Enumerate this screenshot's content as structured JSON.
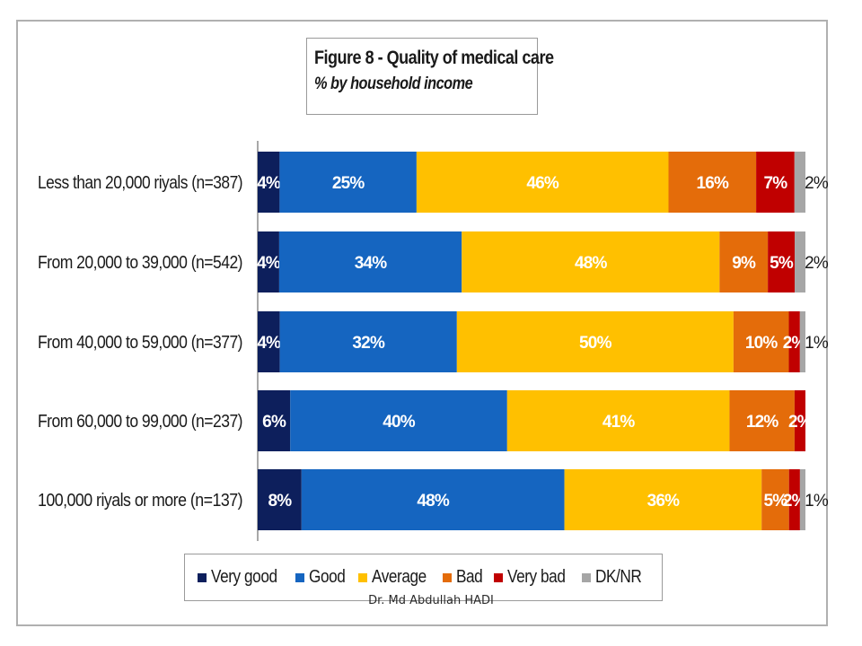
{
  "chart_data": {
    "type": "bar",
    "orientation": "horizontal",
    "stacked": true,
    "title": "Figure 8 - Quality of medical care",
    "subtitle": "% by household income",
    "categories": [
      "Less than 20,000 riyals (n=387)",
      "From 20,000 to 39,000 (n=542)",
      "From 40,000 to 59,000 (n=377)",
      "From 60,000 to 99,000 (n=237)",
      "100,000 riyals or more (n=137)"
    ],
    "series": [
      {
        "name": "Very good",
        "color": "#0d1f5c",
        "values": [
          4,
          4,
          4,
          6,
          8
        ]
      },
      {
        "name": "Good",
        "color": "#1565c0",
        "values": [
          25,
          34,
          32,
          40,
          48
        ]
      },
      {
        "name": "Average",
        "color": "#ffc000",
        "values": [
          46,
          48,
          50,
          41,
          36
        ]
      },
      {
        "name": "Bad",
        "color": "#e46c0a",
        "values": [
          16,
          9,
          10,
          12,
          5
        ]
      },
      {
        "name": "Very bad",
        "color": "#c00000",
        "values": [
          7,
          5,
          2,
          2,
          2
        ]
      },
      {
        "name": "DK/NR",
        "color": "#a6a6a6",
        "values": [
          2,
          2,
          1,
          0,
          1
        ]
      }
    ],
    "data_labels": [
      [
        "4%",
        "25%",
        "46%",
        "16%",
        "7%",
        "2%"
      ],
      [
        "4%",
        "34%",
        "48%",
        "9%",
        "5%",
        "2%"
      ],
      [
        "4%",
        "32%",
        "50%",
        "10%",
        "2%",
        "1%"
      ],
      [
        "6%",
        "40%",
        "41%",
        "12%",
        "2%",
        ""
      ],
      [
        "8%",
        "48%",
        "36%",
        "5%",
        "2%",
        "1%"
      ]
    ],
    "legend_position": "bottom",
    "grid": false
  },
  "watermark": "Dr. Md Abdullah HADI"
}
